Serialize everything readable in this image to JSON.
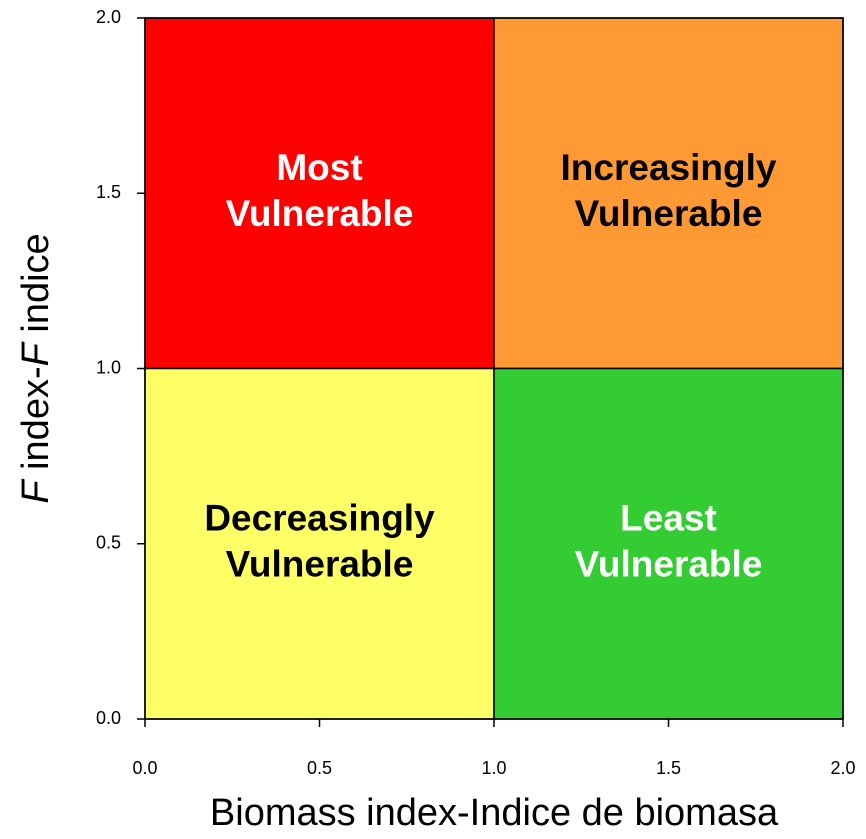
{
  "chart_data": {
    "type": "quadrant",
    "xlabel": "Biomass index-Indice de biomasa",
    "ylabel": [
      "F",
      " index-",
      "F",
      " indice"
    ],
    "ylabel_italic": [
      true,
      false,
      true,
      false
    ],
    "xlim": [
      0,
      2
    ],
    "ylim": [
      0,
      2
    ],
    "xticks": [
      {
        "value": 0,
        "label": "0.0"
      },
      0.5,
      {
        "value": 1,
        "label": "1.0"
      },
      1.5,
      {
        "value": 2,
        "label": "2.0"
      }
    ],
    "yticks": [
      {
        "value": 0,
        "label": "0.0"
      },
      0.5,
      {
        "value": 1,
        "label": "1.0"
      },
      1.5,
      {
        "value": 2,
        "label": "2.0"
      }
    ],
    "regions": [
      {
        "label": [
          "Most",
          "Vulnerable"
        ],
        "color": "#ff0000",
        "text_color": "#ffffff",
        "x": [
          0,
          1
        ],
        "y": [
          1,
          2
        ]
      },
      {
        "label": [
          "Increasingly",
          "Vulnerable"
        ],
        "color": "#ff9933",
        "text_color": "#000000",
        "x": [
          1,
          2
        ],
        "y": [
          1,
          2
        ]
      },
      {
        "label": [
          "Decreasingly",
          "Vulnerable"
        ],
        "color": "#ffff66",
        "text_color": "#000000",
        "x": [
          0,
          1
        ],
        "y": [
          0,
          1
        ]
      },
      {
        "label": [
          "Least",
          "Vulnerable"
        ],
        "color": "#33cc33",
        "text_color": "#ffffff",
        "x": [
          1,
          2
        ],
        "y": [
          0,
          1
        ]
      }
    ]
  }
}
